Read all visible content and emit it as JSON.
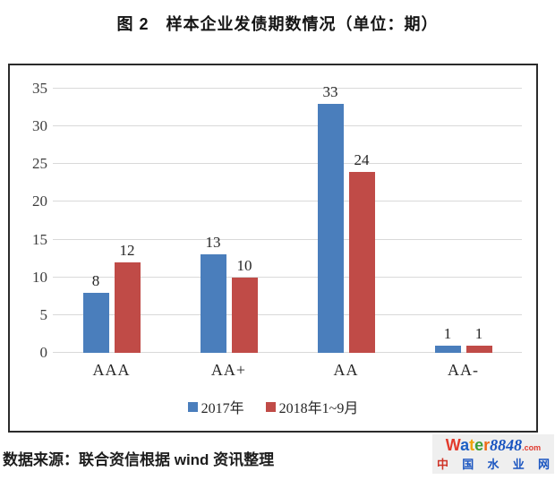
{
  "title": "图 2　样本企业发债期数情况（单位：期）",
  "chart_data": {
    "type": "bar",
    "title": "图 2　样本企业发债期数情况（单位：期）",
    "categories": [
      "AAA",
      "AA+",
      "AA",
      "AA-"
    ],
    "series": [
      {
        "name": "2017年",
        "color": "#4a7ebc",
        "values": [
          8,
          13,
          33,
          1
        ]
      },
      {
        "name": "2018年1~9月",
        "color": "#c04b47",
        "values": [
          12,
          10,
          24,
          1
        ]
      }
    ],
    "ylim": [
      0,
      35
    ],
    "yticks": [
      0,
      5,
      10,
      15,
      20,
      25,
      30,
      35
    ],
    "xlabel": "",
    "ylabel": "",
    "grid": true,
    "gridline_color": "#d9d9d9",
    "frame_color": "#2b2b2b",
    "legend_position": "bottom-inside",
    "data_labels": true
  },
  "footer": {
    "source": "数据来源：联合资信根据 wind 资讯整理"
  },
  "logo": {
    "word_letters": [
      {
        "ch": "W",
        "color": "#e2392b"
      },
      {
        "ch": "a",
        "color": "#1d5fc4"
      },
      {
        "ch": "t",
        "color": "#efa40f"
      },
      {
        "ch": "e",
        "color": "#3d9e3a"
      },
      {
        "ch": "r",
        "color": "#ee6a14"
      }
    ],
    "number": "8848",
    "number_color": "#1a55c0",
    "tld": ".com",
    "tld_color": "#e03a2f",
    "tagline_chars": [
      {
        "ch": "中",
        "color": "#cf3428"
      },
      {
        "ch": "国",
        "color": "#1a55c0"
      },
      {
        "ch": "水",
        "color": "#1a55c0"
      },
      {
        "ch": "业",
        "color": "#1a55c0"
      },
      {
        "ch": "网",
        "color": "#1a55c0"
      }
    ]
  }
}
